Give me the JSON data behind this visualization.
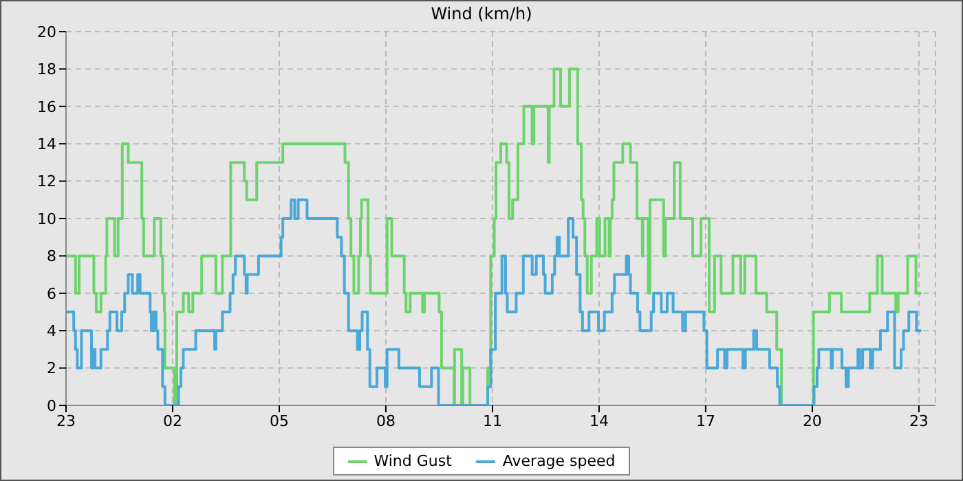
{
  "chart_data": {
    "type": "step",
    "title": "Wind (km/h)",
    "xlim": [
      "--01-01T23:00",
      "--01-02T23:28"
    ],
    "xticks": [
      {
        "value": "--01-01T23:00",
        "label": "23"
      },
      {
        "value": "--01-02T02:00",
        "label": "02"
      },
      {
        "value": "--01-02T05:00",
        "label": "05"
      },
      {
        "value": "--01-02T08:00",
        "label": "08"
      },
      {
        "value": "--01-02T11:00",
        "label": "11"
      },
      {
        "value": "--01-02T14:00",
        "label": "14"
      },
      {
        "value": "--01-02T17:00",
        "label": "17"
      },
      {
        "value": "--01-02T20:00",
        "label": "20"
      },
      {
        "value": "--01-02T23:00",
        "label": "23"
      }
    ],
    "ylim": [
      0,
      20
    ],
    "yticks": [
      0,
      2,
      4,
      6,
      8,
      10,
      12,
      14,
      16,
      18,
      20
    ],
    "grid": true,
    "legend": "bottom",
    "marker": "none",
    "line_style": "solid",
    "series": [
      {
        "name": "Wind Gust",
        "color": "#6dd46d",
        "x": [
          "--01-01T23:00",
          "--01-01T23:16",
          "--01-01T23:22",
          "--01-01T23:47",
          "--01-01T23:51",
          "--01-01T23:59",
          "--01-02T00:07",
          "--01-02T00:09",
          "--01-02T00:22",
          "--01-02T00:28",
          "--01-02T00:35",
          "--01-02T00:45",
          "--01-02T01:08",
          "--01-02T01:11",
          "--01-02T01:29",
          "--01-02T01:40",
          "--01-02T01:43",
          "--01-02T01:46",
          "--01-02T01:47",
          "--01-02T02:03",
          "--01-02T02:07",
          "--01-02T02:18",
          "--01-02T02:27",
          "--01-02T02:34",
          "--01-02T02:49",
          "--01-02T03:13",
          "--01-02T03:24",
          "--01-02T03:38",
          "--01-02T04:01",
          "--01-02T04:05",
          "--01-02T04:22",
          "--01-02T05:06",
          "--01-02T06:51",
          "--01-02T06:57",
          "--01-02T07:01",
          "--01-02T07:06",
          "--01-02T07:14",
          "--01-02T07:17",
          "--01-02T07:19",
          "--01-02T07:30",
          "--01-02T07:34",
          "--01-02T08:02",
          "--01-02T08:10",
          "--01-02T08:31",
          "--01-02T08:34",
          "--01-02T08:41",
          "--01-02T09:02",
          "--01-02T09:05",
          "--01-02T09:30",
          "--01-02T09:34",
          "--01-02T09:55",
          "--01-02T09:56",
          "--01-02T10:08",
          "--01-02T10:10",
          "--01-02T10:22",
          "--01-02T10:52",
          "--01-02T10:57",
          "--01-02T11:03",
          "--01-02T11:06",
          "--01-02T11:14",
          "--01-02T11:24",
          "--01-02T11:28",
          "--01-02T11:34",
          "--01-02T11:43",
          "--01-02T11:53",
          "--01-02T12:07",
          "--01-02T12:10",
          "--01-02T12:34",
          "--01-02T12:36",
          "--01-02T12:44",
          "--01-02T12:55",
          "--01-02T13:10",
          "--01-02T13:24",
          "--01-02T13:30",
          "--01-02T13:33",
          "--01-02T13:36",
          "--01-02T13:40",
          "--01-02T13:47",
          "--01-02T13:56",
          "--01-02T14:01",
          "--01-02T14:10",
          "--01-02T14:17",
          "--01-02T14:19",
          "--01-02T14:22",
          "--01-02T14:25",
          "--01-02T14:40",
          "--01-02T14:53",
          "--01-02T15:04",
          "--01-02T15:13",
          "--01-02T15:14",
          "--01-02T15:23",
          "--01-02T15:26",
          "--01-02T15:49",
          "--01-02T15:52",
          "--01-02T16:07",
          "--01-02T16:17",
          "--01-02T16:38",
          "--01-02T16:52",
          "--01-02T17:06",
          "--01-02T17:15",
          "--01-02T17:26",
          "--01-02T17:46",
          "--01-02T17:59",
          "--01-02T18:06",
          "--01-02T18:25",
          "--01-02T18:43",
          "--01-02T19:00",
          "--01-02T19:08",
          "--01-02T20:02",
          "--01-02T20:29",
          "--01-02T20:49",
          "--01-02T21:37",
          "--01-02T21:50",
          "--01-02T21:58",
          "--01-02T22:21",
          "--01-02T22:25",
          "--01-02T22:41",
          "--01-02T22:55",
          "--01-02T23:04"
        ],
        "values": [
          8,
          6,
          8,
          6,
          5,
          6,
          8,
          10,
          8,
          10,
          14,
          13,
          10,
          8,
          10,
          8,
          6,
          5,
          2,
          0,
          5,
          6,
          5,
          6,
          8,
          6,
          8,
          13,
          12,
          11,
          13,
          14,
          13,
          10,
          8,
          6,
          8,
          10,
          11,
          8,
          6,
          10,
          8,
          6,
          5,
          6,
          5,
          6,
          5,
          2,
          0,
          3,
          0,
          2,
          0,
          2,
          8,
          10,
          13,
          14,
          13,
          10,
          11,
          14,
          16,
          14,
          16,
          13,
          16,
          18,
          16,
          18,
          14,
          11,
          10,
          8,
          6,
          8,
          10,
          8,
          10,
          8,
          10,
          11,
          13,
          14,
          13,
          10,
          8,
          10,
          6,
          11,
          8,
          10,
          13,
          10,
          8,
          10,
          5,
          8,
          6,
          8,
          6,
          8,
          6,
          5,
          3,
          0,
          5,
          6,
          5,
          6,
          8,
          6,
          5,
          6,
          8,
          6,
          6
        ]
      },
      {
        "name": "Average speed",
        "color": "#4aa8d8",
        "x": [
          "--01-01T23:00",
          "--01-01T23:13",
          "--01-01T23:16",
          "--01-01T23:19",
          "--01-01T23:26",
          "--01-01T23:43",
          "--01-01T23:45",
          "--01-01T23:49",
          "--01-01T23:59",
          "--01-02T00:10",
          "--01-02T00:14",
          "--01-02T00:26",
          "--01-02T00:34",
          "--01-02T00:39",
          "--01-02T00:45",
          "--01-02T00:52",
          "--01-02T01:01",
          "--01-02T01:05",
          "--01-02T01:22",
          "--01-02T01:24",
          "--01-02T01:28",
          "--01-02T01:32",
          "--01-02T01:35",
          "--01-02T01:43",
          "--01-02T01:47",
          "--01-02T02:10",
          "--01-02T02:14",
          "--01-02T02:18",
          "--01-02T02:39",
          "--01-02T03:11",
          "--01-02T03:13",
          "--01-02T03:24",
          "--01-02T03:37",
          "--01-02T03:42",
          "--01-02T03:46",
          "--01-02T04:01",
          "--01-02T04:04",
          "--01-02T04:06",
          "--01-02T04:25",
          "--01-02T05:03",
          "--01-02T05:06",
          "--01-02T05:20",
          "--01-02T05:26",
          "--01-02T05:32",
          "--01-02T05:47",
          "--01-02T06:38",
          "--01-02T06:45",
          "--01-02T06:50",
          "--01-02T06:57",
          "--01-02T07:12",
          "--01-02T07:16",
          "--01-02T07:20",
          "--01-02T07:29",
          "--01-02T07:33",
          "--01-02T07:45",
          "--01-02T07:59",
          "--01-02T08:02",
          "--01-02T08:22",
          "--01-02T08:57",
          "--01-02T09:17",
          "--01-02T09:29",
          "--01-02T10:52",
          "--01-02T10:57",
          "--01-02T11:05",
          "--01-02T11:16",
          "--01-02T11:22",
          "--01-02T11:25",
          "--01-02T11:40",
          "--01-02T11:52",
          "--01-02T12:07",
          "--01-02T12:14",
          "--01-02T12:26",
          "--01-02T12:29",
          "--01-02T12:41",
          "--01-02T12:45",
          "--01-02T12:49",
          "--01-02T12:53",
          "--01-02T13:08",
          "--01-02T13:16",
          "--01-02T13:22",
          "--01-02T13:28",
          "--01-02T13:32",
          "--01-02T13:43",
          "--01-02T13:59",
          "--01-02T14:09",
          "--01-02T14:22",
          "--01-02T14:26",
          "--01-02T14:46",
          "--01-02T14:50",
          "--01-02T14:53",
          "--01-02T15:05",
          "--01-02T15:09",
          "--01-02T15:28",
          "--01-02T15:32",
          "--01-02T15:45",
          "--01-02T15:55",
          "--01-02T16:05",
          "--01-02T16:21",
          "--01-02T16:26",
          "--01-02T16:57",
          "--01-02T17:02",
          "--01-02T17:20",
          "--01-02T17:32",
          "--01-02T17:36",
          "--01-02T18:03",
          "--01-02T18:07",
          "--01-02T18:21",
          "--01-02T18:26",
          "--01-02T18:48",
          "--01-02T19:01",
          "--01-02T19:05",
          "--01-02T20:03",
          "--01-02T20:08",
          "--01-02T20:11",
          "--01-02T20:32",
          "--01-02T20:34",
          "--01-02T20:50",
          "--01-02T20:57",
          "--01-02T21:01",
          "--01-02T21:17",
          "--01-02T21:20",
          "--01-02T21:25",
          "--01-02T21:38",
          "--01-02T21:42",
          "--01-02T21:55",
          "--01-02T22:07",
          "--01-02T22:19",
          "--01-02T22:30",
          "--01-02T22:34",
          "--01-02T22:43",
          "--01-02T22:56",
          "--01-02T23:04"
        ],
        "values": [
          5,
          4,
          3,
          2,
          4,
          2,
          3,
          2,
          3,
          4,
          5,
          4,
          5,
          6,
          7,
          6,
          7,
          6,
          5,
          4,
          5,
          4,
          3,
          1,
          0,
          1,
          2,
          3,
          4,
          3,
          4,
          5,
          6,
          7,
          8,
          7,
          6,
          7,
          8,
          9,
          10,
          11,
          10,
          11,
          10,
          9,
          8,
          6,
          4,
          3,
          4,
          5,
          3,
          1,
          2,
          1,
          3,
          2,
          1,
          2,
          0,
          1,
          3,
          6,
          8,
          6,
          5,
          6,
          8,
          7,
          8,
          7,
          6,
          7,
          8,
          9,
          8,
          10,
          9,
          7,
          5,
          4,
          5,
          4,
          5,
          6,
          7,
          8,
          7,
          6,
          5,
          4,
          5,
          6,
          5,
          6,
          5,
          4,
          5,
          4,
          2,
          3,
          2,
          3,
          2,
          3,
          4,
          3,
          2,
          1,
          0,
          1,
          2,
          3,
          2,
          3,
          2,
          1,
          2,
          3,
          2,
          3,
          2,
          3,
          4,
          5,
          2,
          3,
          4,
          5,
          4,
          4
        ]
      }
    ]
  }
}
